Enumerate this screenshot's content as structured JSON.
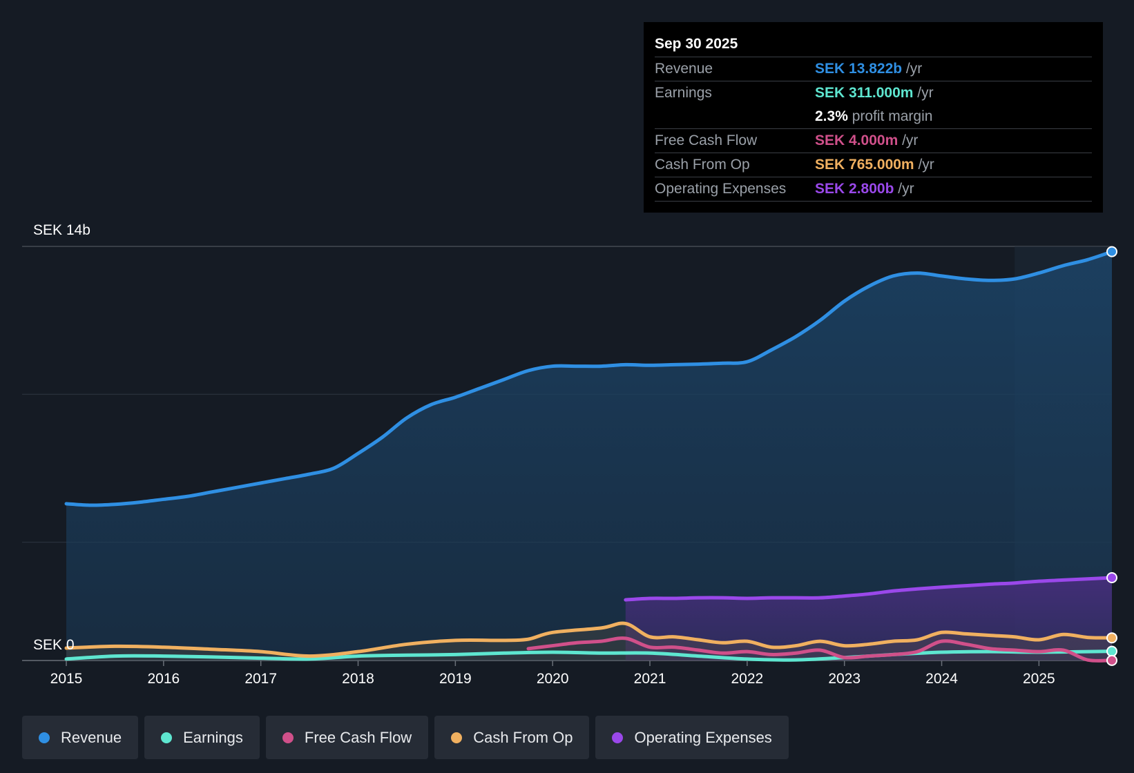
{
  "chart_data": {
    "type": "area",
    "title": "",
    "xlabel": "",
    "ylabel": "",
    "y_axis_labels": {
      "top": "SEK 14b",
      "bottom": "SEK 0"
    },
    "ylim": [
      0,
      14
    ],
    "x_ticks": [
      {
        "label": "2015",
        "value": 2015
      },
      {
        "label": "2016",
        "value": 2016
      },
      {
        "label": "2017",
        "value": 2017
      },
      {
        "label": "2018",
        "value": 2018
      },
      {
        "label": "2019",
        "value": 2019
      },
      {
        "label": "2020",
        "value": 2020
      },
      {
        "label": "2021",
        "value": 2021
      },
      {
        "label": "2022",
        "value": 2022
      },
      {
        "label": "2023",
        "value": 2023
      },
      {
        "label": "2024",
        "value": 2024
      },
      {
        "label": "2025",
        "value": 2025
      }
    ],
    "xlim": [
      2015,
      2025.75
    ],
    "forecast_start": 2024.75,
    "series": [
      {
        "name": "Revenue",
        "color": "#2f8fe3",
        "fill": true,
        "x": [
          2015,
          2015.25,
          2015.5,
          2015.75,
          2016,
          2016.25,
          2016.5,
          2016.75,
          2017,
          2017.25,
          2017.5,
          2017.75,
          2018,
          2018.25,
          2018.5,
          2018.75,
          2019,
          2019.25,
          2019.5,
          2019.75,
          2020,
          2020.25,
          2020.5,
          2020.75,
          2021,
          2021.25,
          2021.5,
          2021.75,
          2022,
          2022.25,
          2022.5,
          2022.75,
          2023,
          2023.25,
          2023.5,
          2023.75,
          2024,
          2024.25,
          2024.5,
          2024.75,
          2025,
          2025.25,
          2025.5,
          2025.75
        ],
        "values": [
          5.3,
          5.25,
          5.28,
          5.35,
          5.45,
          5.55,
          5.7,
          5.85,
          6.0,
          6.15,
          6.3,
          6.5,
          7.0,
          7.55,
          8.2,
          8.65,
          8.9,
          9.2,
          9.5,
          9.8,
          9.95,
          9.95,
          9.95,
          10.0,
          9.98,
          10.0,
          10.02,
          10.05,
          10.1,
          10.5,
          10.95,
          11.5,
          12.15,
          12.65,
          13.0,
          13.1,
          13.0,
          12.9,
          12.85,
          12.9,
          13.1,
          13.35,
          13.55,
          13.822
        ]
      },
      {
        "name": "Earnings",
        "color": "#5ee6d0",
        "fill": false,
        "x": [
          2015,
          2015.5,
          2016,
          2016.5,
          2017,
          2017.5,
          2018,
          2018.5,
          2019,
          2019.5,
          2020,
          2020.5,
          2021,
          2021.5,
          2022,
          2022.5,
          2023,
          2023.5,
          2024,
          2024.5,
          2025,
          2025.75
        ],
        "values": [
          0.05,
          0.15,
          0.15,
          0.12,
          0.08,
          0.05,
          0.15,
          0.18,
          0.2,
          0.25,
          0.28,
          0.25,
          0.25,
          0.15,
          0.05,
          0.02,
          0.1,
          0.2,
          0.28,
          0.3,
          0.28,
          0.311
        ]
      },
      {
        "name": "Free Cash Flow",
        "color": "#d0508a",
        "fill": false,
        "x": [
          2019.75,
          2020,
          2020.25,
          2020.5,
          2020.75,
          2021,
          2021.25,
          2021.5,
          2021.75,
          2022,
          2022.25,
          2022.5,
          2022.75,
          2023,
          2023.25,
          2023.5,
          2023.75,
          2024,
          2024.25,
          2024.5,
          2024.75,
          2025,
          2025.25,
          2025.5,
          2025.75
        ],
        "values": [
          0.4,
          0.5,
          0.6,
          0.65,
          0.75,
          0.45,
          0.45,
          0.35,
          0.25,
          0.3,
          0.2,
          0.25,
          0.35,
          0.1,
          0.15,
          0.2,
          0.3,
          0.65,
          0.55,
          0.4,
          0.35,
          0.3,
          0.35,
          0.02,
          0.004
        ]
      },
      {
        "name": "Cash From Op",
        "color": "#f0b060",
        "fill": false,
        "x": [
          2015,
          2015.5,
          2016,
          2016.5,
          2017,
          2017.5,
          2018,
          2018.5,
          2019,
          2019.5,
          2019.75,
          2020,
          2020.5,
          2020.75,
          2021,
          2021.25,
          2021.5,
          2021.75,
          2022,
          2022.25,
          2022.5,
          2022.75,
          2023,
          2023.25,
          2023.5,
          2023.75,
          2024,
          2024.25,
          2024.5,
          2024.75,
          2025,
          2025.25,
          2025.5,
          2025.75
        ],
        "values": [
          0.42,
          0.48,
          0.45,
          0.38,
          0.3,
          0.15,
          0.3,
          0.55,
          0.68,
          0.68,
          0.72,
          0.95,
          1.1,
          1.25,
          0.8,
          0.8,
          0.7,
          0.6,
          0.65,
          0.45,
          0.5,
          0.65,
          0.5,
          0.55,
          0.65,
          0.7,
          0.95,
          0.9,
          0.85,
          0.8,
          0.7,
          0.88,
          0.78,
          0.765
        ]
      },
      {
        "name": "Operating Expenses",
        "color": "#9a48ea",
        "fill": true,
        "x": [
          2020.75,
          2021,
          2021.25,
          2021.5,
          2021.75,
          2022,
          2022.25,
          2022.5,
          2022.75,
          2023,
          2023.25,
          2023.5,
          2023.75,
          2024,
          2024.25,
          2024.5,
          2024.75,
          2025,
          2025.25,
          2025.5,
          2025.75
        ],
        "values": [
          2.05,
          2.1,
          2.1,
          2.12,
          2.12,
          2.1,
          2.12,
          2.12,
          2.12,
          2.18,
          2.25,
          2.35,
          2.42,
          2.48,
          2.53,
          2.58,
          2.62,
          2.68,
          2.72,
          2.76,
          2.8
        ]
      }
    ]
  },
  "tooltip": {
    "date": "Sep 30 2025",
    "rows": [
      {
        "label": "Revenue",
        "value": "SEK 13.822b",
        "unit": " /yr",
        "color": "#2f8fe3"
      },
      {
        "label": "Earnings",
        "value": "SEK 311.000m",
        "unit": " /yr",
        "color": "#5ee6d0"
      },
      {
        "label": "",
        "value": "2.3%",
        "unit": " profit margin",
        "color": "#ffffff"
      },
      {
        "label": "Free Cash Flow",
        "value": "SEK 4.000m",
        "unit": " /yr",
        "color": "#d0508a"
      },
      {
        "label": "Cash From Op",
        "value": "SEK 765.000m",
        "unit": " /yr",
        "color": "#f0b060"
      },
      {
        "label": "Operating Expenses",
        "value": "SEK 2.800b",
        "unit": " /yr",
        "color": "#9a48ea"
      }
    ]
  },
  "legend": [
    {
      "label": "Revenue",
      "color": "#2f8fe3"
    },
    {
      "label": "Earnings",
      "color": "#5ee6d0"
    },
    {
      "label": "Free Cash Flow",
      "color": "#d0508a"
    },
    {
      "label": "Cash From Op",
      "color": "#f0b060"
    },
    {
      "label": "Operating Expenses",
      "color": "#9a48ea"
    }
  ]
}
